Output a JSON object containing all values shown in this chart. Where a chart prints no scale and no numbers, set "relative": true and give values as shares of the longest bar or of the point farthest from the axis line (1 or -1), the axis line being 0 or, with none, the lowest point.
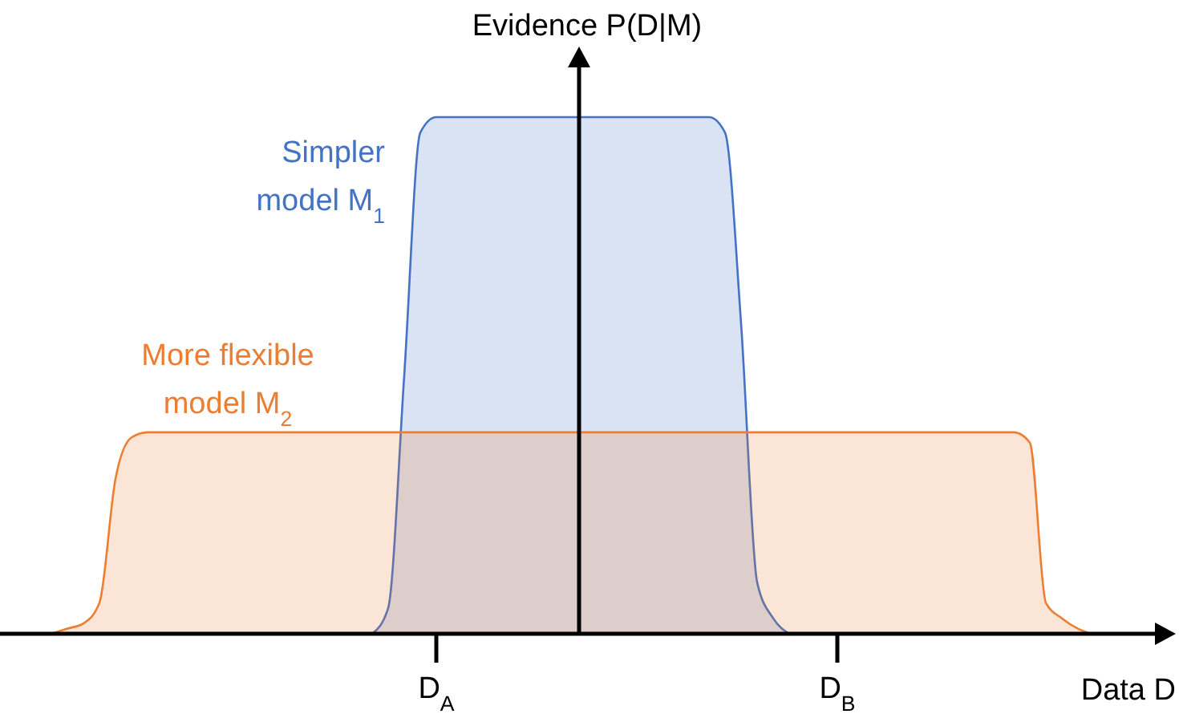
{
  "chart_data": {
    "type": "area",
    "relative": true,
    "xlabel": "Data D",
    "ylabel": "Evidence P(D|M)",
    "categories": [
      null,
      null,
      null,
      null,
      null,
      null,
      null,
      null,
      null,
      null,
      null,
      null,
      null,
      null,
      null,
      null,
      null,
      null,
      null,
      null,
      null,
      null,
      null,
      null,
      "D$_{A}$",
      null,
      null,
      null,
      null,
      null,
      null,
      null,
      null,
      null,
      null,
      null,
      null,
      null,
      null,
      null,
      null,
      null,
      null,
      null,
      null,
      null,
      null,
      null,
      null,
      "D$_{B}$",
      null,
      null,
      null,
      null,
      null,
      null,
      null,
      null,
      null,
      null,
      null,
      null,
      null,
      null,
      null,
      null,
      null
    ],
    "series": [
      {
        "name": "Simpler\nmodel M$_{1}$",
        "color": "#4472c4",
        "values": [
          null,
          null,
          null,
          null,
          null,
          null,
          null,
          null,
          null,
          null,
          null,
          null,
          null,
          null,
          null,
          null,
          null,
          null,
          null,
          null,
          0,
          0.05,
          0.5,
          0.97,
          1,
          1,
          1,
          1,
          1,
          1,
          1,
          1,
          1,
          1,
          1,
          1,
          1,
          1,
          1,
          1,
          1,
          1,
          0.97,
          0.6,
          0.1,
          0.03,
          0,
          null,
          null,
          null,
          null,
          null,
          null,
          null,
          null,
          null,
          null,
          null,
          null,
          null,
          null,
          null,
          null,
          null,
          null,
          null,
          null
        ]
      },
      {
        "name": "More flexible\nmodel M$_{2}$",
        "color": "#ed7d31",
        "values": [
          0,
          0.01,
          0.02,
          0.06,
          0.3,
          0.38,
          0.39,
          0.39,
          0.39,
          0.39,
          0.39,
          0.39,
          0.39,
          0.39,
          0.39,
          0.39,
          0.39,
          0.39,
          0.39,
          0.39,
          0.39,
          0.39,
          0.39,
          0.39,
          0.39,
          0.39,
          0.39,
          0.39,
          0.39,
          0.39,
          0.39,
          0.39,
          0.39,
          0.39,
          0.39,
          0.39,
          0.39,
          0.39,
          0.39,
          0.39,
          0.39,
          0.39,
          0.39,
          0.39,
          0.39,
          0.39,
          0.39,
          0.39,
          0.39,
          0.39,
          0.39,
          0.39,
          0.39,
          0.39,
          0.39,
          0.39,
          0.39,
          0.39,
          0.39,
          0.39,
          0.39,
          0.37,
          0.06,
          0.03,
          0.01,
          0,
          0
        ]
      }
    ]
  }
}
